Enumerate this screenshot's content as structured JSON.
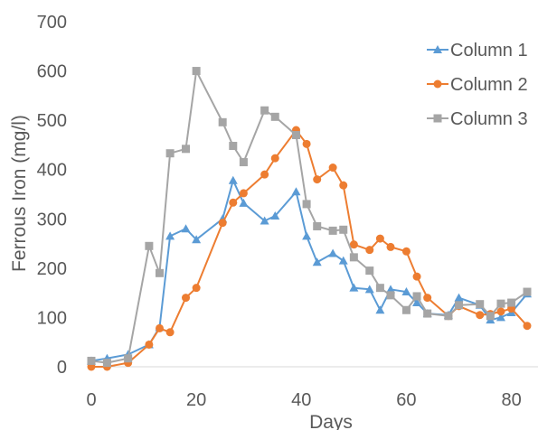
{
  "chart_data": {
    "type": "line",
    "title": "",
    "xlabel": "Days",
    "ylabel": "Ferrous Iron (mg/l)",
    "xlim": [
      0,
      83
    ],
    "ylim": [
      0,
      700
    ],
    "xticks": [
      0,
      20,
      40,
      60,
      80
    ],
    "yticks": [
      0,
      100,
      200,
      300,
      400,
      500,
      600,
      700
    ],
    "grid": false,
    "legend_position": "right",
    "series": [
      {
        "name": "Column 1",
        "color": "#5b9bd5",
        "marker": "triangle",
        "points": [
          [
            0,
            12
          ],
          [
            3,
            17
          ],
          [
            7,
            25
          ],
          [
            11,
            45
          ],
          [
            13,
            80
          ],
          [
            15,
            265
          ],
          [
            18,
            280
          ],
          [
            20,
            258
          ],
          [
            25,
            300
          ],
          [
            27,
            378
          ],
          [
            29,
            332
          ],
          [
            33,
            296
          ],
          [
            35,
            306
          ],
          [
            39,
            355
          ],
          [
            41,
            265
          ],
          [
            43,
            212
          ],
          [
            46,
            230
          ],
          [
            48,
            215
          ],
          [
            50,
            160
          ],
          [
            53,
            157
          ],
          [
            55,
            115
          ],
          [
            57,
            157
          ],
          [
            60,
            152
          ],
          [
            62,
            130
          ],
          [
            64,
            108
          ],
          [
            68,
            105
          ],
          [
            70,
            140
          ],
          [
            74,
            125
          ],
          [
            76,
            95
          ],
          [
            78,
            100
          ],
          [
            80,
            110
          ],
          [
            83,
            148
          ]
        ]
      },
      {
        "name": "Column 2",
        "color": "#ed7d31",
        "marker": "circle",
        "points": [
          [
            0,
            0
          ],
          [
            3,
            0
          ],
          [
            7,
            8
          ],
          [
            11,
            45
          ],
          [
            13,
            78
          ],
          [
            15,
            70
          ],
          [
            18,
            140
          ],
          [
            20,
            160
          ],
          [
            25,
            292
          ],
          [
            27,
            333
          ],
          [
            29,
            352
          ],
          [
            33,
            390
          ],
          [
            35,
            423
          ],
          [
            39,
            480
          ],
          [
            41,
            452
          ],
          [
            43,
            380
          ],
          [
            46,
            404
          ],
          [
            48,
            368
          ],
          [
            50,
            248
          ],
          [
            53,
            237
          ],
          [
            55,
            260
          ],
          [
            57,
            243
          ],
          [
            60,
            234
          ],
          [
            62,
            183
          ],
          [
            64,
            140
          ],
          [
            68,
            103
          ],
          [
            70,
            123
          ],
          [
            74,
            105
          ],
          [
            76,
            107
          ],
          [
            78,
            112
          ],
          [
            80,
            118
          ],
          [
            83,
            83
          ]
        ]
      },
      {
        "name": "Column 3",
        "color": "#a5a5a5",
        "marker": "square",
        "points": [
          [
            0,
            12
          ],
          [
            3,
            8
          ],
          [
            7,
            17
          ],
          [
            11,
            245
          ],
          [
            13,
            190
          ],
          [
            15,
            433
          ],
          [
            18,
            442
          ],
          [
            20,
            600
          ],
          [
            25,
            496
          ],
          [
            27,
            448
          ],
          [
            29,
            415
          ],
          [
            33,
            520
          ],
          [
            35,
            507
          ],
          [
            39,
            470
          ],
          [
            41,
            330
          ],
          [
            43,
            285
          ],
          [
            46,
            276
          ],
          [
            48,
            278
          ],
          [
            50,
            222
          ],
          [
            53,
            195
          ],
          [
            55,
            160
          ],
          [
            57,
            145
          ],
          [
            60,
            115
          ],
          [
            62,
            143
          ],
          [
            64,
            108
          ],
          [
            68,
            103
          ],
          [
            70,
            125
          ],
          [
            74,
            127
          ],
          [
            76,
            103
          ],
          [
            78,
            128
          ],
          [
            80,
            130
          ],
          [
            83,
            152
          ]
        ]
      }
    ]
  }
}
